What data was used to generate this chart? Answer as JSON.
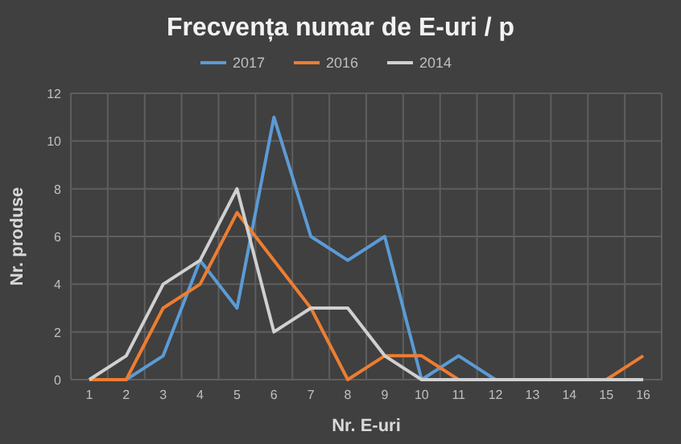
{
  "chart_data": {
    "type": "line",
    "title": "Frecvența numar de E-uri / p",
    "xlabel": "Nr. E-uri",
    "ylabel": "Nr. produse",
    "categories": [
      "1",
      "2",
      "3",
      "4",
      "5",
      "6",
      "7",
      "8",
      "9",
      "10",
      "11",
      "12",
      "13",
      "14",
      "15",
      "16"
    ],
    "series": [
      {
        "name": "2017",
        "color": "#5b9bd5",
        "values": [
          0,
          0,
          1,
          5,
          3,
          11,
          6,
          5,
          6,
          0,
          1,
          0,
          0,
          null,
          null,
          null
        ]
      },
      {
        "name": "2016",
        "color": "#ed7d31",
        "values": [
          0,
          0,
          3,
          4,
          7,
          5,
          3,
          0,
          1,
          1,
          0,
          0,
          0,
          0,
          0,
          1
        ]
      },
      {
        "name": "2014",
        "color": "#d0d0d0",
        "values": [
          0,
          1,
          4,
          5,
          8,
          2,
          3,
          3,
          1,
          0,
          0,
          0,
          0,
          0,
          0,
          0
        ]
      }
    ],
    "ylim": [
      0,
      12
    ],
    "yticks": [
      0,
      2,
      4,
      6,
      8,
      10,
      12
    ],
    "grid": true,
    "legend": "top",
    "marker": "none",
    "line_style": "solid"
  }
}
